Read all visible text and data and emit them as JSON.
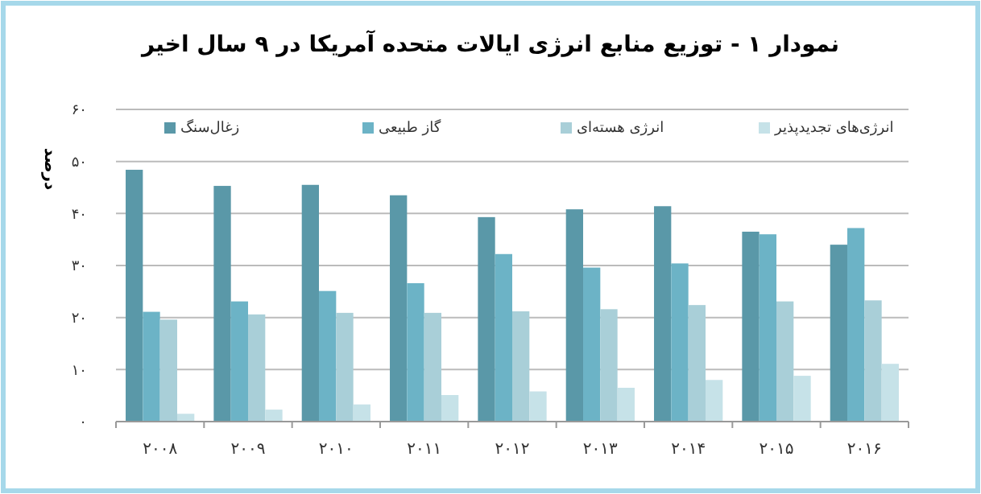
{
  "chart_data": {
    "type": "bar",
    "title": "نمودار ۱ - توزیع منابع انرژی ایالات متحده آمریکا در ۹ سال اخیر",
    "ylabel": "درصد",
    "categories": [
      "۲۰۰۸",
      "۲۰۰۹",
      "۲۰۱۰",
      "۲۰۱۱",
      "۲۰۱۲",
      "۲۰۱۳",
      "۲۰۱۴",
      "۲۰۱۵",
      "۲۰۱۶"
    ],
    "series": [
      {
        "name": "زغال‌سنگ",
        "color": "#5a98a8",
        "values": [
          48.4,
          45.3,
          45.5,
          43.5,
          39.3,
          40.8,
          41.4,
          36.5,
          34.0
        ]
      },
      {
        "name": "گاز طبیعی",
        "color": "#6cb3c6",
        "values": [
          21.1,
          23.1,
          25.1,
          26.6,
          32.2,
          29.6,
          30.4,
          36.0,
          37.2
        ]
      },
      {
        "name": "انرژی هسته‌ای",
        "color": "#a9cfd8",
        "values": [
          19.6,
          20.6,
          20.9,
          20.9,
          21.2,
          21.6,
          22.4,
          23.1,
          23.3
        ]
      },
      {
        "name": "انرژی‌های تجدیدپذیر",
        "color": "#c6e2e8",
        "values": [
          1.5,
          2.3,
          3.3,
          5.1,
          5.8,
          6.5,
          8.0,
          8.8,
          11.1
        ]
      }
    ],
    "ylim": [
      0,
      60
    ],
    "yticks": [
      {
        "value": 0,
        "label": "۰"
      },
      {
        "value": 10,
        "label": "۱۰"
      },
      {
        "value": 20,
        "label": "۲۰"
      },
      {
        "value": 30,
        "label": "۳۰"
      },
      {
        "value": 40,
        "label": "۴۰"
      },
      {
        "value": 50,
        "label": "۵۰"
      },
      {
        "value": 60,
        "label": "۶۰"
      }
    ],
    "grid": "y",
    "legend": "top"
  }
}
